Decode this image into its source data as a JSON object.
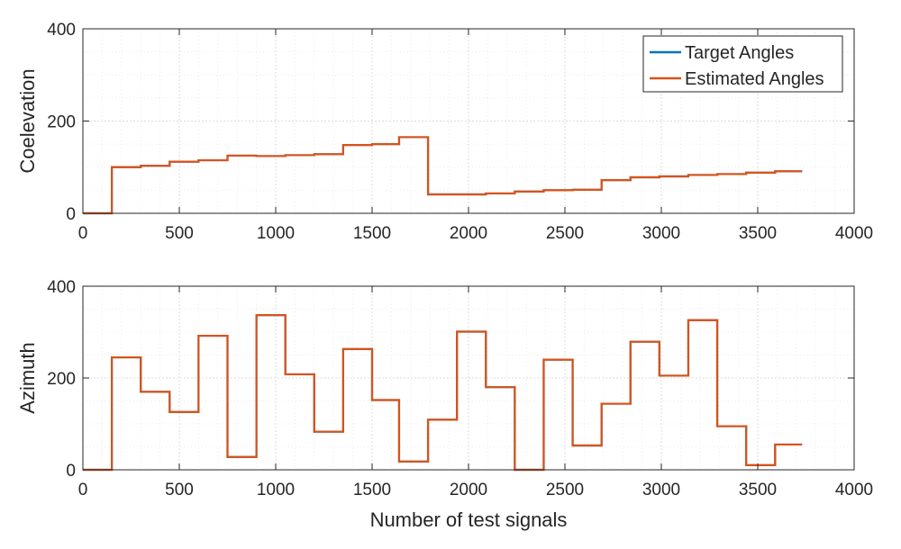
{
  "chart_data": [
    {
      "type": "line",
      "ylabel": "Coelevation",
      "xlabel": "",
      "xlim": [
        0,
        4000
      ],
      "ylim": [
        0,
        400
      ],
      "xticks": [
        0,
        500,
        1000,
        1500,
        2000,
        2500,
        3000,
        3500,
        4000
      ],
      "yticks": [
        0,
        200,
        400
      ],
      "grid": true,
      "legend_location": "top-right",
      "series": [
        {
          "name": "Target Angles",
          "color": "#0072BD",
          "steps": [
            [
              0,
              0
            ],
            [
              150,
              100
            ],
            [
              300,
              103
            ],
            [
              450,
              112
            ],
            [
              600,
              115
            ],
            [
              750,
              125
            ],
            [
              900,
              124
            ],
            [
              1050,
              126
            ],
            [
              1200,
              128
            ],
            [
              1350,
              148
            ],
            [
              1500,
              150
            ],
            [
              1640,
              165
            ],
            [
              1790,
              41
            ],
            [
              1940,
              41
            ],
            [
              2090,
              43
            ],
            [
              2240,
              47
            ],
            [
              2390,
              50
            ],
            [
              2540,
              51
            ],
            [
              2690,
              72
            ],
            [
              2840,
              78
            ],
            [
              2990,
              80
            ],
            [
              3140,
              83
            ],
            [
              3290,
              85
            ],
            [
              3440,
              88
            ],
            [
              3590,
              91
            ]
          ],
          "x_end": 3730
        },
        {
          "name": "Estimated Angles",
          "color": "#D95319",
          "steps": [
            [
              0,
              0
            ],
            [
              150,
              100
            ],
            [
              300,
              103
            ],
            [
              450,
              112
            ],
            [
              600,
              115
            ],
            [
              750,
              125
            ],
            [
              900,
              124
            ],
            [
              1050,
              126
            ],
            [
              1200,
              128
            ],
            [
              1350,
              148
            ],
            [
              1500,
              150
            ],
            [
              1640,
              165
            ],
            [
              1790,
              41
            ],
            [
              1940,
              41
            ],
            [
              2090,
              43
            ],
            [
              2240,
              47
            ],
            [
              2390,
              50
            ],
            [
              2540,
              51
            ],
            [
              2690,
              72
            ],
            [
              2840,
              78
            ],
            [
              2990,
              80
            ],
            [
              3140,
              83
            ],
            [
              3290,
              85
            ],
            [
              3440,
              88
            ],
            [
              3590,
              91
            ]
          ],
          "x_end": 3730
        }
      ]
    },
    {
      "type": "line",
      "ylabel": "Azimuth",
      "xlabel": "Number of test signals",
      "xlim": [
        0,
        4000
      ],
      "ylim": [
        0,
        400
      ],
      "xticks": [
        0,
        500,
        1000,
        1500,
        2000,
        2500,
        3000,
        3500,
        4000
      ],
      "yticks": [
        0,
        200,
        400
      ],
      "grid": true,
      "series": [
        {
          "name": "Target Angles",
          "color": "#0072BD",
          "steps": [
            [
              0,
              0
            ],
            [
              150,
              245
            ],
            [
              300,
              170
            ],
            [
              450,
              126
            ],
            [
              600,
              292
            ],
            [
              750,
              28
            ],
            [
              900,
              337
            ],
            [
              1050,
              208
            ],
            [
              1200,
              83
            ],
            [
              1350,
              263
            ],
            [
              1500,
              152
            ],
            [
              1640,
              18
            ],
            [
              1790,
              109
            ],
            [
              1940,
              301
            ],
            [
              2090,
              180
            ],
            [
              2240,
              0
            ],
            [
              2390,
              240
            ],
            [
              2540,
              53
            ],
            [
              2690,
              144
            ],
            [
              2840,
              279
            ],
            [
              2990,
              205
            ],
            [
              3140,
              326
            ],
            [
              3290,
              95
            ],
            [
              3440,
              10
            ],
            [
              3590,
              55
            ]
          ],
          "x_end": 3730
        },
        {
          "name": "Estimated Angles",
          "color": "#D95319",
          "steps": [
            [
              0,
              0
            ],
            [
              150,
              245
            ],
            [
              300,
              170
            ],
            [
              450,
              126
            ],
            [
              600,
              292
            ],
            [
              750,
              28
            ],
            [
              900,
              337
            ],
            [
              1050,
              208
            ],
            [
              1200,
              83
            ],
            [
              1350,
              263
            ],
            [
              1500,
              152
            ],
            [
              1640,
              18
            ],
            [
              1790,
              109
            ],
            [
              1940,
              301
            ],
            [
              2090,
              180
            ],
            [
              2240,
              0
            ],
            [
              2390,
              240
            ],
            [
              2540,
              53
            ],
            [
              2690,
              144
            ],
            [
              2840,
              279
            ],
            [
              2990,
              205
            ],
            [
              3140,
              326
            ],
            [
              3290,
              95
            ],
            [
              3440,
              10
            ],
            [
              3590,
              55
            ]
          ],
          "x_end": 3730
        }
      ]
    }
  ]
}
